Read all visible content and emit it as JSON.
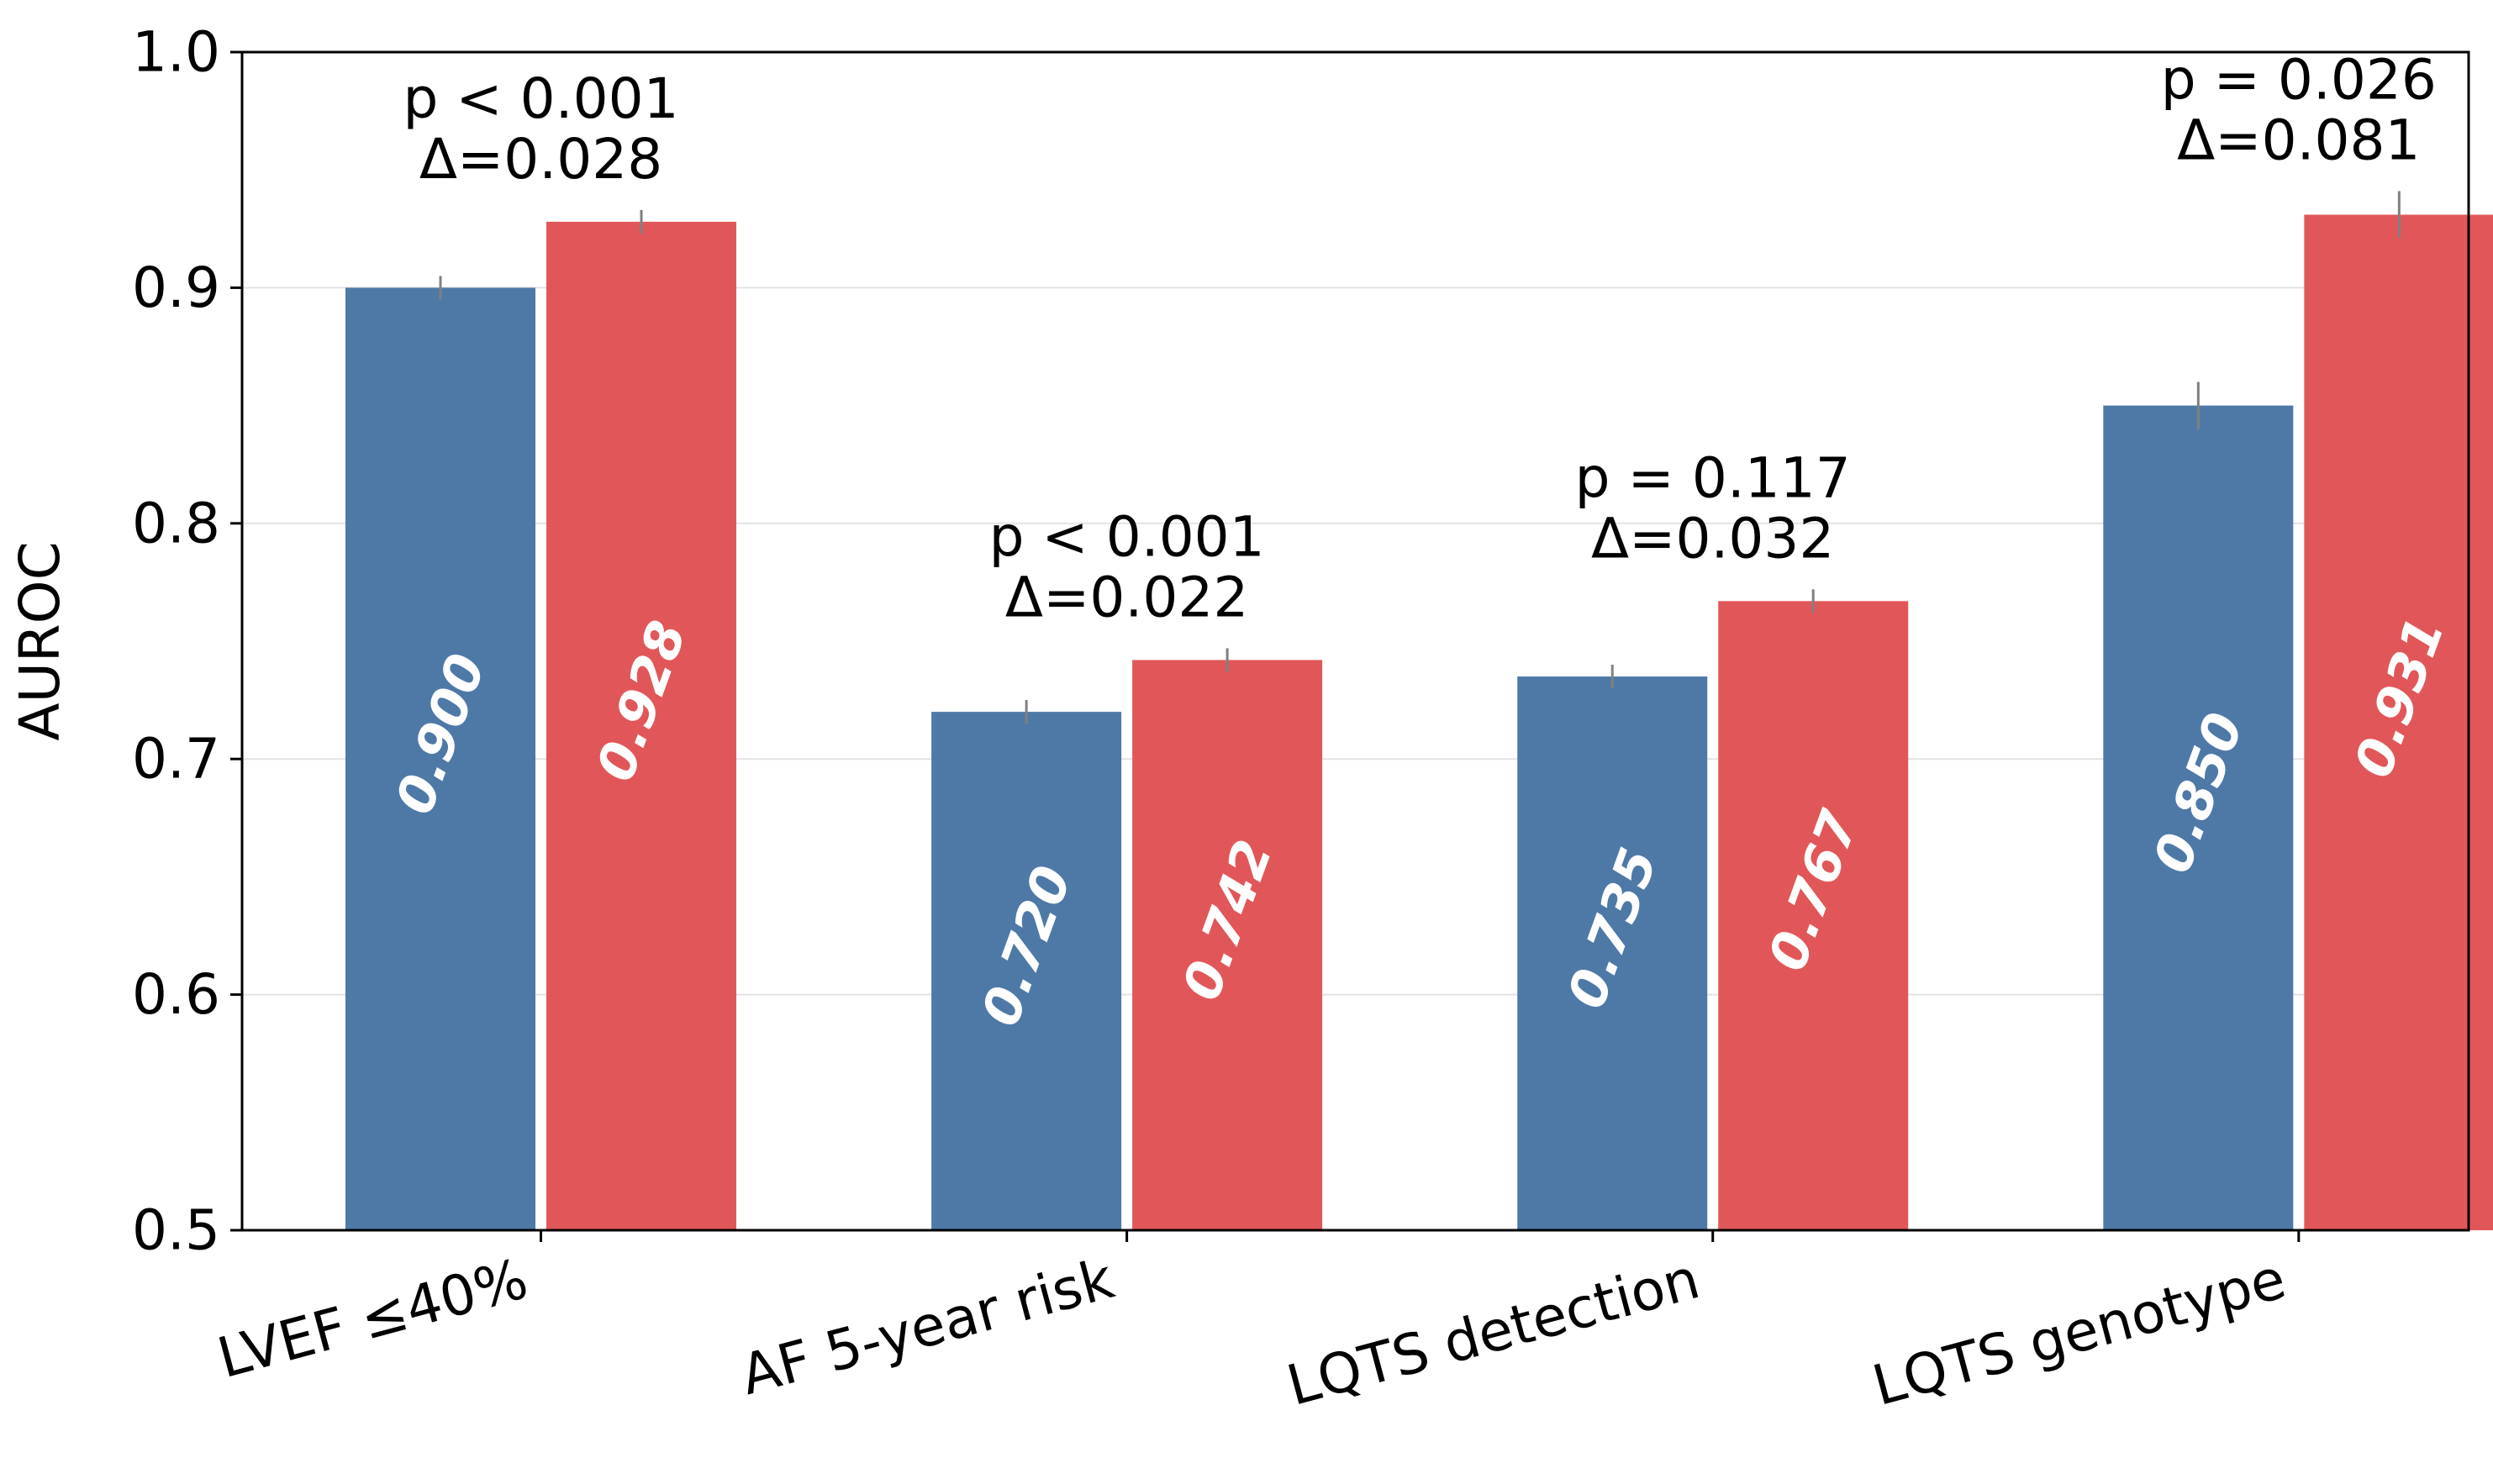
{
  "chart_data": {
    "type": "bar",
    "categories": [
      "LVEF ≤40%",
      "AF 5-year risk",
      "LQTS detection",
      "LQTS genotype"
    ],
    "series": [
      {
        "values": [
          0.9,
          0.72,
          0.735,
          0.85
        ],
        "errors": [
          0.005,
          0.005,
          0.005,
          0.01
        ],
        "color": "#4e79a7"
      },
      {
        "values": [
          0.928,
          0.742,
          0.767,
          0.931
        ],
        "errors": [
          0.005,
          0.005,
          0.005,
          0.01
        ],
        "color": "#e15759"
      }
    ],
    "value_labels": [
      [
        "0.900",
        "0.720",
        "0.735",
        "0.850"
      ],
      [
        "0.928",
        "0.742",
        "0.767",
        "0.931"
      ]
    ],
    "annotations": [
      {
        "p": "p < 0.001",
        "delta": "Δ=0.028"
      },
      {
        "p": "p < 0.001",
        "delta": "Δ=0.022"
      },
      {
        "p": "p = 0.117",
        "delta": "Δ=0.032"
      },
      {
        "p": "p = 0.026",
        "delta": "Δ=0.081"
      }
    ],
    "ylabel": "AUROC",
    "ylim": [
      0.5,
      1.0
    ],
    "yticks": [
      "0.5",
      "0.6",
      "0.7",
      "0.8",
      "0.9",
      "1.0"
    ],
    "grid": "horizontal",
    "legend": "none",
    "error_color": "#808080"
  }
}
